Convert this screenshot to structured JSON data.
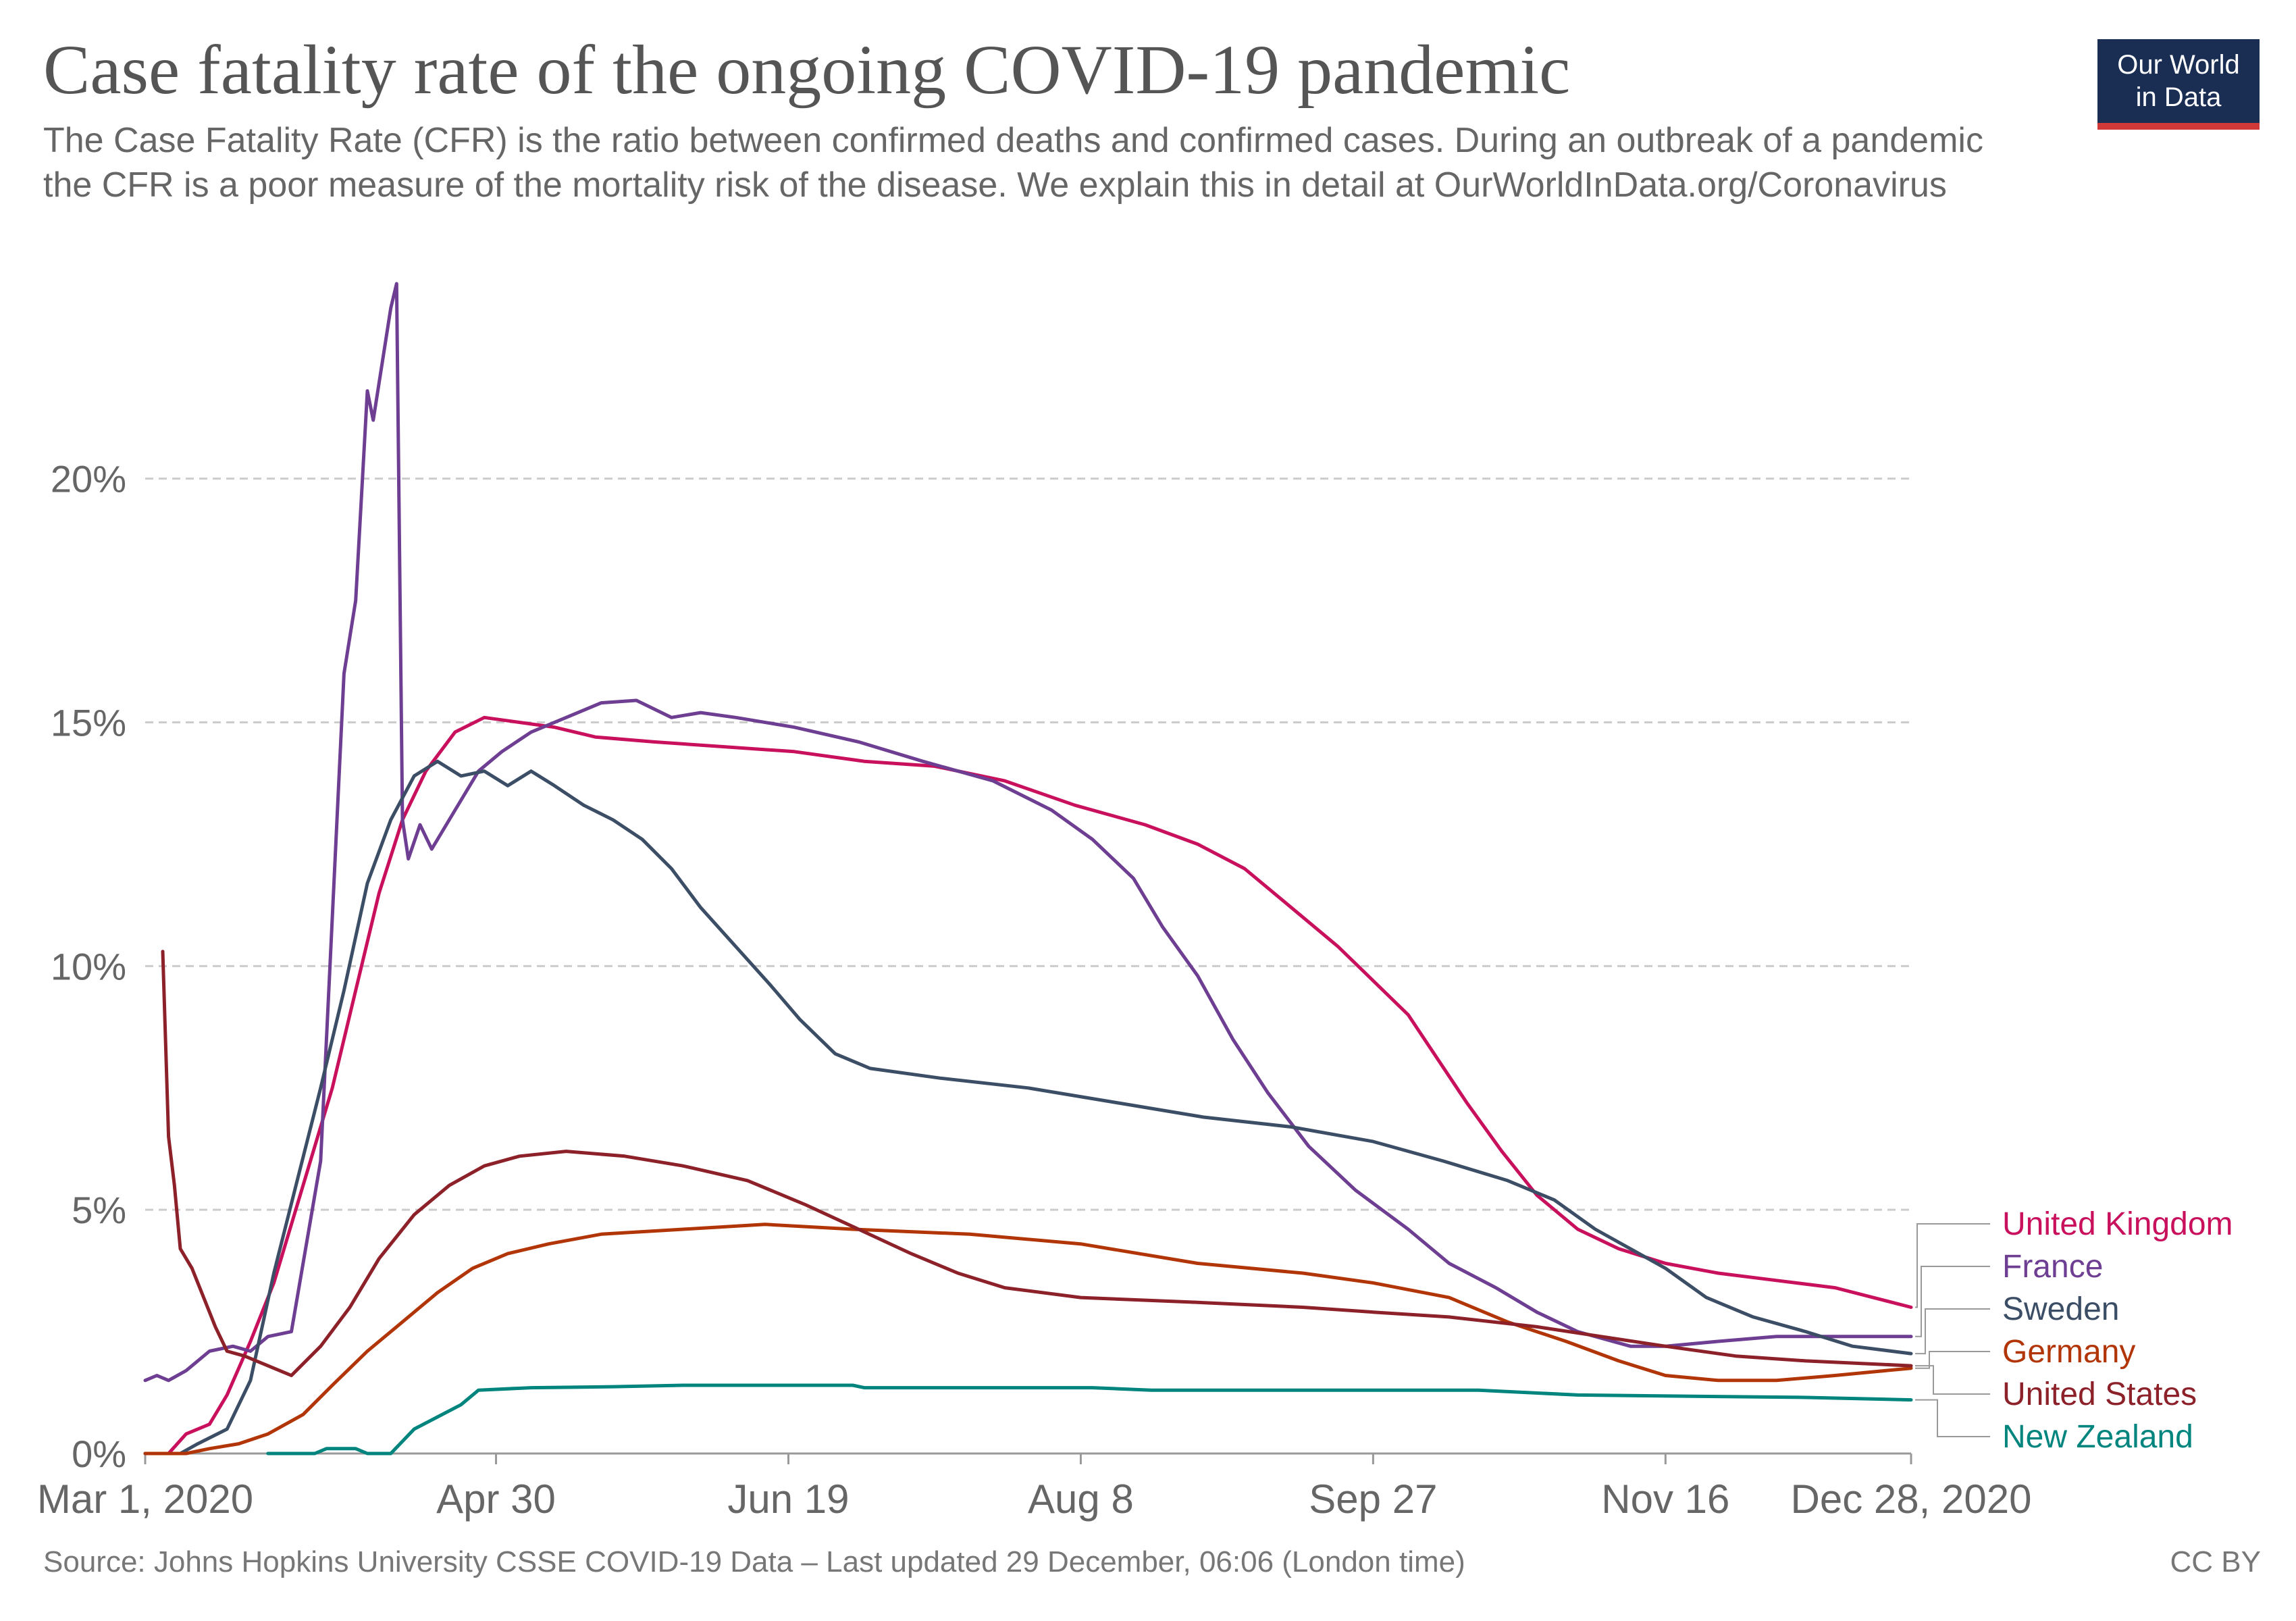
{
  "header": {
    "title": "Case fatality rate of the ongoing COVID-19 pandemic",
    "subtitle": "The Case Fatality Rate (CFR) is the ratio between confirmed deaths and confirmed cases. During an outbreak of a pandemic the CFR is a poor measure of the mortality risk of the disease. We explain this in detail at OurWorldInData.org/Coronavirus"
  },
  "logo": {
    "line1": "Our World",
    "line2": "in Data",
    "bg_color": "#1a2e53",
    "accent_color": "#d03937"
  },
  "footer": {
    "source": "Source: Johns Hopkins University CSSE COVID-19 Data – Last updated 29 December, 06:06 (London time)",
    "license": "CC BY"
  },
  "chart_data": {
    "type": "line",
    "title": "Case fatality rate of the ongoing COVID-19 pandemic",
    "xlabel": "",
    "ylabel": "",
    "x_range": [
      "2020-03-01",
      "2020-12-28"
    ],
    "ylim": [
      0,
      24
    ],
    "y_ticks": [
      0,
      5,
      10,
      15,
      20
    ],
    "y_tick_labels": [
      "0%",
      "5%",
      "10%",
      "15%",
      "20%"
    ],
    "x_ticks": [
      "2020-03-01",
      "2020-04-30",
      "2020-06-19",
      "2020-08-08",
      "2020-09-27",
      "2020-11-16",
      "2020-12-28"
    ],
    "x_tick_labels": [
      "Mar 1, 2020",
      "Apr 30",
      "Jun 19",
      "Aug 8",
      "Sep 27",
      "Nov 16",
      "Dec 28, 2020"
    ],
    "grid": "horizontal dashed",
    "legend_position": "right, line-end labels",
    "series": [
      {
        "name": "United Kingdom",
        "color": "#c8105d",
        "points": [
          [
            "2020-03-01",
            0
          ],
          [
            "2020-03-05",
            0
          ],
          [
            "2020-03-08",
            0.4
          ],
          [
            "2020-03-12",
            0.6
          ],
          [
            "2020-03-15",
            1.2
          ],
          [
            "2020-03-19",
            2.3
          ],
          [
            "2020-03-23",
            3.5
          ],
          [
            "2020-03-28",
            5.5
          ],
          [
            "2020-04-02",
            7.5
          ],
          [
            "2020-04-06",
            9.5
          ],
          [
            "2020-04-10",
            11.5
          ],
          [
            "2020-04-14",
            13
          ],
          [
            "2020-04-18",
            14
          ],
          [
            "2020-04-23",
            14.8
          ],
          [
            "2020-04-28",
            15.1
          ],
          [
            "2020-05-04",
            15
          ],
          [
            "2020-05-10",
            14.9
          ],
          [
            "2020-05-17",
            14.7
          ],
          [
            "2020-05-27",
            14.6
          ],
          [
            "2020-06-08",
            14.5
          ],
          [
            "2020-06-20",
            14.4
          ],
          [
            "2020-07-02",
            14.2
          ],
          [
            "2020-07-14",
            14.1
          ],
          [
            "2020-07-26",
            13.8
          ],
          [
            "2020-08-07",
            13.3
          ],
          [
            "2020-08-19",
            12.9
          ],
          [
            "2020-08-28",
            12.5
          ],
          [
            "2020-09-05",
            12
          ],
          [
            "2020-09-13",
            11.2
          ],
          [
            "2020-09-21",
            10.4
          ],
          [
            "2020-09-27",
            9.7
          ],
          [
            "2020-10-03",
            9
          ],
          [
            "2020-10-08",
            8.1
          ],
          [
            "2020-10-13",
            7.2
          ],
          [
            "2020-10-19",
            6.2
          ],
          [
            "2020-10-25",
            5.3
          ],
          [
            "2020-11-01",
            4.6
          ],
          [
            "2020-11-08",
            4.2
          ],
          [
            "2020-11-16",
            3.9
          ],
          [
            "2020-11-25",
            3.7
          ],
          [
            "2020-12-05",
            3.55
          ],
          [
            "2020-12-15",
            3.4
          ],
          [
            "2020-12-28",
            3.0
          ]
        ]
      },
      {
        "name": "France",
        "color": "#6d3e91",
        "points": [
          [
            "2020-03-01",
            1.5
          ],
          [
            "2020-03-03",
            1.6
          ],
          [
            "2020-03-05",
            1.5
          ],
          [
            "2020-03-08",
            1.7
          ],
          [
            "2020-03-12",
            2.1
          ],
          [
            "2020-03-16",
            2.2
          ],
          [
            "2020-03-19",
            2.1
          ],
          [
            "2020-03-22",
            2.4
          ],
          [
            "2020-03-26",
            2.5
          ],
          [
            "2020-03-31",
            6
          ],
          [
            "2020-04-04",
            16
          ],
          [
            "2020-04-06",
            17.5
          ],
          [
            "2020-04-08",
            21.8
          ],
          [
            "2020-04-09",
            21.2
          ],
          [
            "2020-04-12",
            23.5
          ],
          [
            "2020-04-13",
            24
          ],
          [
            "2020-04-14",
            13
          ],
          [
            "2020-04-15",
            12.2
          ],
          [
            "2020-04-17",
            12.9
          ],
          [
            "2020-04-19",
            12.4
          ],
          [
            "2020-04-23",
            13.2
          ],
          [
            "2020-04-27",
            14
          ],
          [
            "2020-05-01",
            14.4
          ],
          [
            "2020-05-06",
            14.8
          ],
          [
            "2020-05-12",
            15.1
          ],
          [
            "2020-05-18",
            15.4
          ],
          [
            "2020-05-24",
            15.45
          ],
          [
            "2020-05-30",
            15.1
          ],
          [
            "2020-06-04",
            15.2
          ],
          [
            "2020-06-10",
            15.1
          ],
          [
            "2020-06-20",
            14.9
          ],
          [
            "2020-07-01",
            14.6
          ],
          [
            "2020-07-12",
            14.2
          ],
          [
            "2020-07-24",
            13.8
          ],
          [
            "2020-08-03",
            13.2
          ],
          [
            "2020-08-10",
            12.6
          ],
          [
            "2020-08-17",
            11.8
          ],
          [
            "2020-08-22",
            10.8
          ],
          [
            "2020-08-28",
            9.8
          ],
          [
            "2020-09-03",
            8.5
          ],
          [
            "2020-09-09",
            7.4
          ],
          [
            "2020-09-16",
            6.3
          ],
          [
            "2020-09-24",
            5.4
          ],
          [
            "2020-10-03",
            4.6
          ],
          [
            "2020-10-10",
            3.9
          ],
          [
            "2020-10-18",
            3.4
          ],
          [
            "2020-10-25",
            2.9
          ],
          [
            "2020-11-01",
            2.5
          ],
          [
            "2020-11-10",
            2.2
          ],
          [
            "2020-11-16",
            2.2
          ],
          [
            "2020-11-25",
            2.3
          ],
          [
            "2020-12-05",
            2.4
          ],
          [
            "2020-12-28",
            2.4
          ]
        ]
      },
      {
        "name": "Sweden",
        "color": "#3c4e66",
        "points": [
          [
            "2020-03-01",
            0
          ],
          [
            "2020-03-07",
            0
          ],
          [
            "2020-03-10",
            0.2
          ],
          [
            "2020-03-15",
            0.5
          ],
          [
            "2020-03-19",
            1.5
          ],
          [
            "2020-03-23",
            3.7
          ],
          [
            "2020-03-27",
            5.6
          ],
          [
            "2020-03-31",
            7.5
          ],
          [
            "2020-04-04",
            9.5
          ],
          [
            "2020-04-08",
            11.7
          ],
          [
            "2020-04-12",
            13
          ],
          [
            "2020-04-16",
            13.9
          ],
          [
            "2020-04-20",
            14.2
          ],
          [
            "2020-04-24",
            13.9
          ],
          [
            "2020-04-28",
            14
          ],
          [
            "2020-05-02",
            13.7
          ],
          [
            "2020-05-06",
            14
          ],
          [
            "2020-05-10",
            13.7
          ],
          [
            "2020-05-15",
            13.3
          ],
          [
            "2020-05-20",
            13
          ],
          [
            "2020-05-25",
            12.6
          ],
          [
            "2020-05-30",
            12
          ],
          [
            "2020-06-04",
            11.2
          ],
          [
            "2020-06-10",
            10.4
          ],
          [
            "2020-06-16",
            9.6
          ],
          [
            "2020-06-21",
            8.9
          ],
          [
            "2020-06-27",
            8.2
          ],
          [
            "2020-07-03",
            7.9
          ],
          [
            "2020-07-15",
            7.7
          ],
          [
            "2020-07-30",
            7.5
          ],
          [
            "2020-08-14",
            7.2
          ],
          [
            "2020-08-29",
            6.9
          ],
          [
            "2020-09-13",
            6.7
          ],
          [
            "2020-09-27",
            6.4
          ],
          [
            "2020-10-09",
            6.0
          ],
          [
            "2020-10-20",
            5.6
          ],
          [
            "2020-10-28",
            5.2
          ],
          [
            "2020-11-04",
            4.6
          ],
          [
            "2020-11-10",
            4.2
          ],
          [
            "2020-11-16",
            3.8
          ],
          [
            "2020-11-23",
            3.2
          ],
          [
            "2020-12-01",
            2.8
          ],
          [
            "2020-12-10",
            2.5
          ],
          [
            "2020-12-18",
            2.2
          ],
          [
            "2020-12-28",
            2.05
          ]
        ]
      },
      {
        "name": "Germany",
        "color": "#b13507",
        "points": [
          [
            "2020-03-01",
            0
          ],
          [
            "2020-03-08",
            0
          ],
          [
            "2020-03-12",
            0.1
          ],
          [
            "2020-03-17",
            0.2
          ],
          [
            "2020-03-22",
            0.4
          ],
          [
            "2020-03-28",
            0.8
          ],
          [
            "2020-04-02",
            1.4
          ],
          [
            "2020-04-08",
            2.1
          ],
          [
            "2020-04-14",
            2.7
          ],
          [
            "2020-04-20",
            3.3
          ],
          [
            "2020-04-26",
            3.8
          ],
          [
            "2020-05-02",
            4.1
          ],
          [
            "2020-05-09",
            4.3
          ],
          [
            "2020-05-18",
            4.5
          ],
          [
            "2020-06-01",
            4.6
          ],
          [
            "2020-06-15",
            4.7
          ],
          [
            "2020-06-30",
            4.6
          ],
          [
            "2020-07-20",
            4.5
          ],
          [
            "2020-08-08",
            4.3
          ],
          [
            "2020-08-28",
            3.9
          ],
          [
            "2020-09-15",
            3.7
          ],
          [
            "2020-09-27",
            3.5
          ],
          [
            "2020-10-10",
            3.2
          ],
          [
            "2020-10-20",
            2.7
          ],
          [
            "2020-10-30",
            2.3
          ],
          [
            "2020-11-08",
            1.9
          ],
          [
            "2020-11-16",
            1.6
          ],
          [
            "2020-11-25",
            1.5
          ],
          [
            "2020-12-05",
            1.5
          ],
          [
            "2020-12-15",
            1.6
          ],
          [
            "2020-12-28",
            1.75
          ]
        ]
      },
      {
        "name": "United States",
        "color": "#8c2129",
        "points": [
          [
            "2020-03-04",
            10.3
          ],
          [
            "2020-03-05",
            6.5
          ],
          [
            "2020-03-06",
            5.5
          ],
          [
            "2020-03-07",
            4.2
          ],
          [
            "2020-03-09",
            3.8
          ],
          [
            "2020-03-11",
            3.2
          ],
          [
            "2020-03-13",
            2.6
          ],
          [
            "2020-03-15",
            2.1
          ],
          [
            "2020-03-18",
            2.0
          ],
          [
            "2020-03-22",
            1.8
          ],
          [
            "2020-03-26",
            1.6
          ],
          [
            "2020-03-31",
            2.2
          ],
          [
            "2020-04-05",
            3
          ],
          [
            "2020-04-10",
            4
          ],
          [
            "2020-04-16",
            4.9
          ],
          [
            "2020-04-22",
            5.5
          ],
          [
            "2020-04-28",
            5.9
          ],
          [
            "2020-05-04",
            6.1
          ],
          [
            "2020-05-12",
            6.2
          ],
          [
            "2020-05-22",
            6.1
          ],
          [
            "2020-06-01",
            5.9
          ],
          [
            "2020-06-12",
            5.6
          ],
          [
            "2020-06-22",
            5.1
          ],
          [
            "2020-07-01",
            4.6
          ],
          [
            "2020-07-10",
            4.1
          ],
          [
            "2020-07-18",
            3.7
          ],
          [
            "2020-07-26",
            3.4
          ],
          [
            "2020-08-08",
            3.2
          ],
          [
            "2020-08-28",
            3.1
          ],
          [
            "2020-09-15",
            3.0
          ],
          [
            "2020-09-27",
            2.9
          ],
          [
            "2020-10-10",
            2.8
          ],
          [
            "2020-10-25",
            2.6
          ],
          [
            "2020-11-05",
            2.4
          ],
          [
            "2020-11-16",
            2.2
          ],
          [
            "2020-11-28",
            2.0
          ],
          [
            "2020-12-10",
            1.9
          ],
          [
            "2020-12-28",
            1.8
          ]
        ]
      },
      {
        "name": "New Zealand",
        "color": "#00847e",
        "points": [
          [
            "2020-03-22",
            0
          ],
          [
            "2020-03-30",
            0
          ],
          [
            "2020-04-01",
            0.1
          ],
          [
            "2020-04-06",
            0.1
          ],
          [
            "2020-04-08",
            0
          ],
          [
            "2020-04-12",
            0
          ],
          [
            "2020-04-16",
            0.5
          ],
          [
            "2020-04-20",
            0.75
          ],
          [
            "2020-04-24",
            1.0
          ],
          [
            "2020-04-27",
            1.3
          ],
          [
            "2020-05-06",
            1.35
          ],
          [
            "2020-05-20",
            1.37
          ],
          [
            "2020-06-01",
            1.4
          ],
          [
            "2020-06-30",
            1.4
          ],
          [
            "2020-07-02",
            1.35
          ],
          [
            "2020-08-10",
            1.35
          ],
          [
            "2020-08-20",
            1.3
          ],
          [
            "2020-09-15",
            1.3
          ],
          [
            "2020-10-15",
            1.3
          ],
          [
            "2020-11-01",
            1.2
          ],
          [
            "2020-12-10",
            1.15
          ],
          [
            "2020-12-28",
            1.1
          ]
        ]
      }
    ]
  }
}
